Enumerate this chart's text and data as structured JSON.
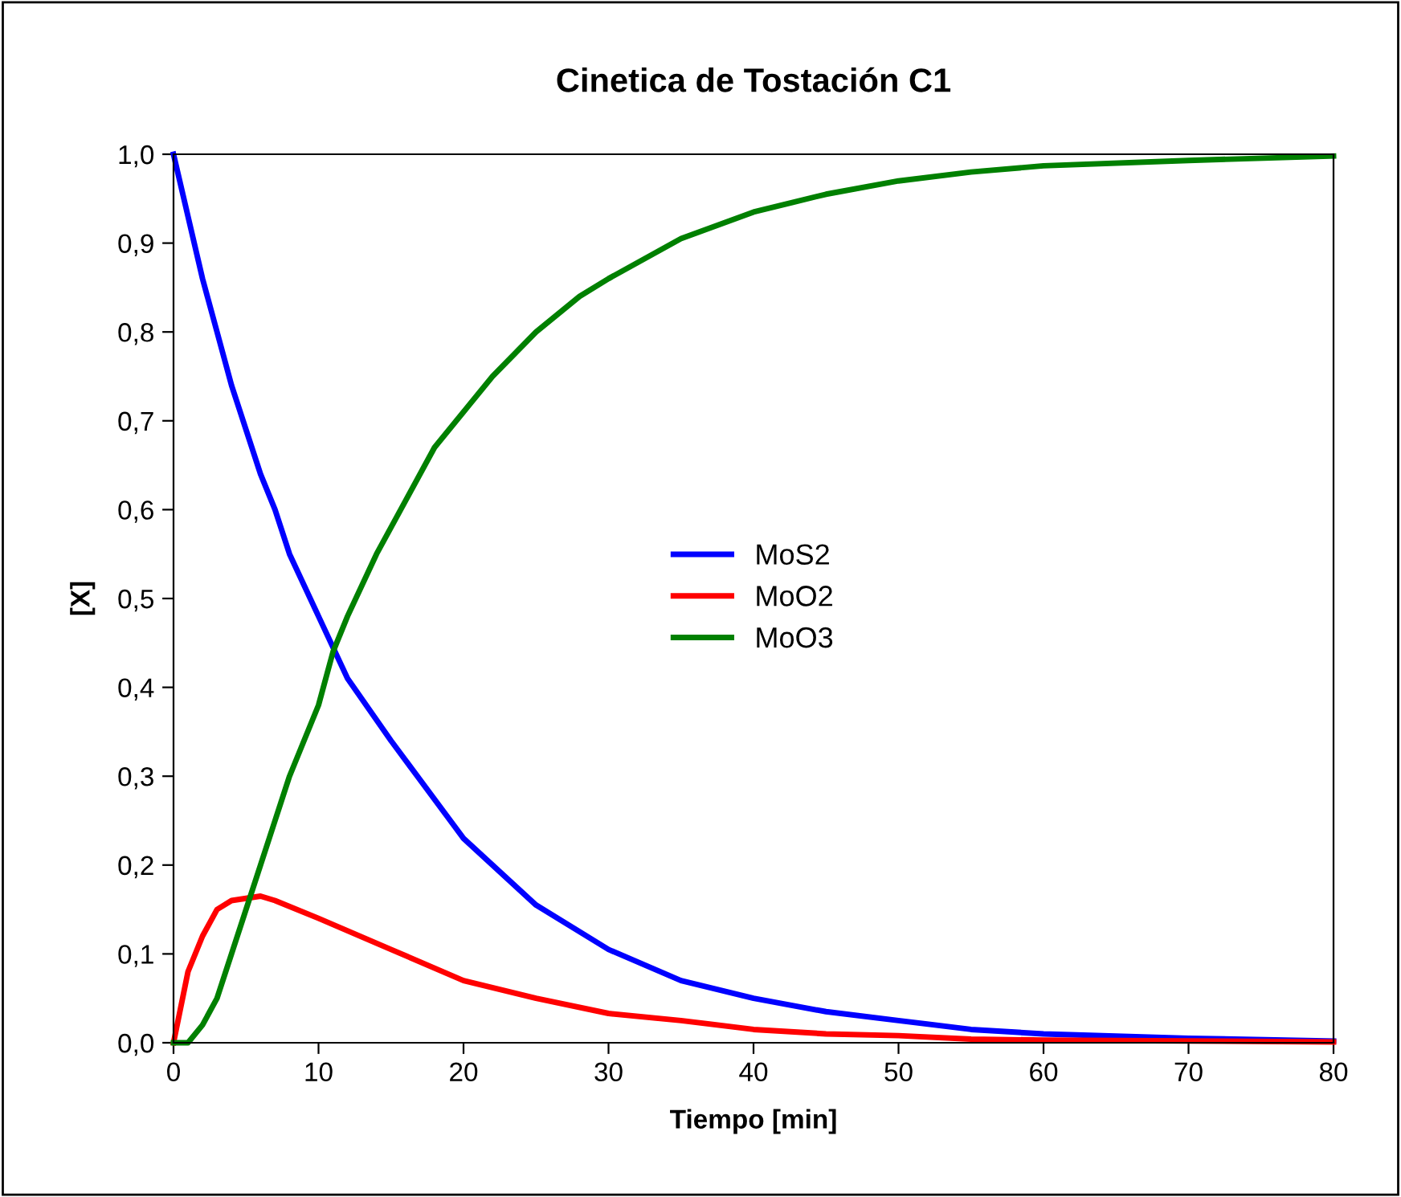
{
  "chart_data": {
    "type": "line",
    "title": "Cinetica de Tostación C1",
    "xlabel": "Tiempo [min]",
    "ylabel": "[X]",
    "xlim": [
      0,
      80
    ],
    "xticks": [
      0,
      10,
      20,
      30,
      40,
      50,
      60,
      70,
      80
    ],
    "ylim": [
      0,
      1
    ],
    "yticks": [
      {
        "value": 0,
        "label": "0,0"
      },
      {
        "value": 0.1,
        "label": "0,1"
      },
      {
        "value": 0.2,
        "label": "0,2"
      },
      {
        "value": 0.3,
        "label": "0,3"
      },
      {
        "value": 0.4,
        "label": "0,4"
      },
      {
        "value": 0.5,
        "label": "0,5"
      },
      {
        "value": 0.6,
        "label": "0,6"
      },
      {
        "value": 0.7,
        "label": "0,7"
      },
      {
        "value": 0.8,
        "label": "0,8"
      },
      {
        "value": 0.9,
        "label": "0,9"
      },
      {
        "value": 1,
        "label": "1,0"
      }
    ],
    "grid": false,
    "legend": "center",
    "marker": "none",
    "line_style": "solid",
    "series": [
      {
        "name": "MoS2",
        "color": "#0000ff",
        "x": [
          0,
          1,
          2,
          3,
          4,
          5,
          6,
          7,
          8,
          10,
          12,
          15,
          20,
          25,
          30,
          35,
          40,
          45,
          50,
          55,
          60,
          70,
          80
        ],
        "values": [
          1.0,
          0.93,
          0.86,
          0.8,
          0.74,
          0.69,
          0.64,
          0.6,
          0.55,
          0.48,
          0.41,
          0.34,
          0.23,
          0.155,
          0.105,
          0.07,
          0.05,
          0.035,
          0.025,
          0.015,
          0.01,
          0.005,
          0.002
        ]
      },
      {
        "name": "MoO2",
        "color": "#ff0000",
        "x": [
          0,
          1,
          2,
          3,
          4,
          6,
          7,
          10,
          15,
          20,
          25,
          30,
          35,
          40,
          45,
          50,
          55,
          60,
          70,
          80
        ],
        "values": [
          0,
          0.08,
          0.12,
          0.15,
          0.16,
          0.165,
          0.16,
          0.14,
          0.105,
          0.07,
          0.05,
          0.033,
          0.025,
          0.015,
          0.01,
          0.008,
          0.004,
          0.003,
          0.002,
          0.001
        ]
      },
      {
        "name": "MoO3",
        "color": "#008000",
        "x": [
          0,
          1,
          2,
          3,
          4,
          5,
          6,
          7,
          8,
          10,
          11,
          12,
          14,
          16,
          18,
          20,
          22,
          25,
          28,
          30,
          35,
          40,
          45,
          50,
          55,
          60,
          70,
          80
        ],
        "values": [
          0,
          0,
          0.02,
          0.05,
          0.1,
          0.15,
          0.2,
          0.25,
          0.3,
          0.38,
          0.44,
          0.48,
          0.55,
          0.61,
          0.67,
          0.71,
          0.75,
          0.8,
          0.84,
          0.86,
          0.905,
          0.935,
          0.955,
          0.97,
          0.98,
          0.987,
          0.993,
          0.998
        ]
      }
    ]
  }
}
